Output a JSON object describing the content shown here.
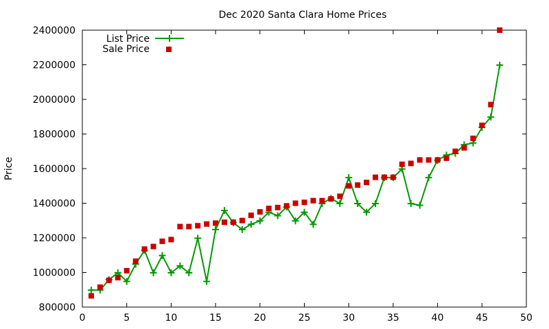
{
  "chart_data": {
    "type": "scatter",
    "title": "Dec 2020 Santa Clara Home Prices",
    "xlabel": "",
    "ylabel": "Price",
    "xlim": [
      0,
      50
    ],
    "ylim": [
      800000,
      2400000
    ],
    "xticks": [
      0,
      5,
      10,
      15,
      20,
      25,
      30,
      35,
      40,
      45,
      50
    ],
    "yticks": [
      800000,
      1000000,
      1200000,
      1400000,
      1600000,
      1800000,
      2000000,
      2200000,
      2400000
    ],
    "grid": false,
    "legend_position": "top-left",
    "series": [
      {
        "name": "List Price",
        "style": "linespoints",
        "marker": "plus",
        "color": "#009900",
        "x": [
          1,
          2,
          3,
          4,
          5,
          6,
          7,
          8,
          9,
          10,
          11,
          12,
          13,
          14,
          15,
          16,
          17,
          18,
          19,
          20,
          21,
          22,
          23,
          24,
          25,
          26,
          27,
          28,
          29,
          30,
          31,
          32,
          33,
          34,
          35,
          36,
          37,
          38,
          39,
          40,
          41,
          42,
          43,
          44,
          45,
          46,
          47
        ],
        "y": [
          898000,
          898000,
          958000,
          998000,
          948000,
          1048000,
          1128000,
          998000,
          1098000,
          998000,
          1038000,
          998000,
          1198000,
          948000,
          1248000,
          1358000,
          1288000,
          1248000,
          1278000,
          1298000,
          1348000,
          1328000,
          1378000,
          1298000,
          1348000,
          1278000,
          1398000,
          1428000,
          1398000,
          1548000,
          1398000,
          1348000,
          1398000,
          1548000,
          1548000,
          1598000,
          1398000,
          1388000,
          1548000,
          1648000,
          1678000,
          1688000,
          1738000,
          1748000,
          1838000,
          1898000,
          2198000
        ]
      },
      {
        "name": "Sale Price",
        "style": "points",
        "marker": "square",
        "color": "#cc0000",
        "x": [
          1,
          2,
          3,
          4,
          5,
          6,
          7,
          8,
          9,
          10,
          11,
          12,
          13,
          14,
          15,
          16,
          17,
          18,
          19,
          20,
          21,
          22,
          23,
          24,
          25,
          26,
          27,
          28,
          29,
          30,
          31,
          32,
          33,
          34,
          35,
          36,
          37,
          38,
          39,
          40,
          41,
          42,
          43,
          44,
          45,
          46,
          47
        ],
        "y": [
          865000,
          915000,
          955000,
          970000,
          1010000,
          1065000,
          1135000,
          1150000,
          1180000,
          1190000,
          1265000,
          1265000,
          1270000,
          1280000,
          1285000,
          1290000,
          1290000,
          1300000,
          1330000,
          1350000,
          1370000,
          1375000,
          1385000,
          1400000,
          1405000,
          1415000,
          1415000,
          1425000,
          1440000,
          1500000,
          1505000,
          1520000,
          1550000,
          1550000,
          1550000,
          1625000,
          1630000,
          1650000,
          1650000,
          1650000,
          1660000,
          1700000,
          1720000,
          1775000,
          1850000,
          1970000,
          2400000
        ]
      }
    ]
  }
}
